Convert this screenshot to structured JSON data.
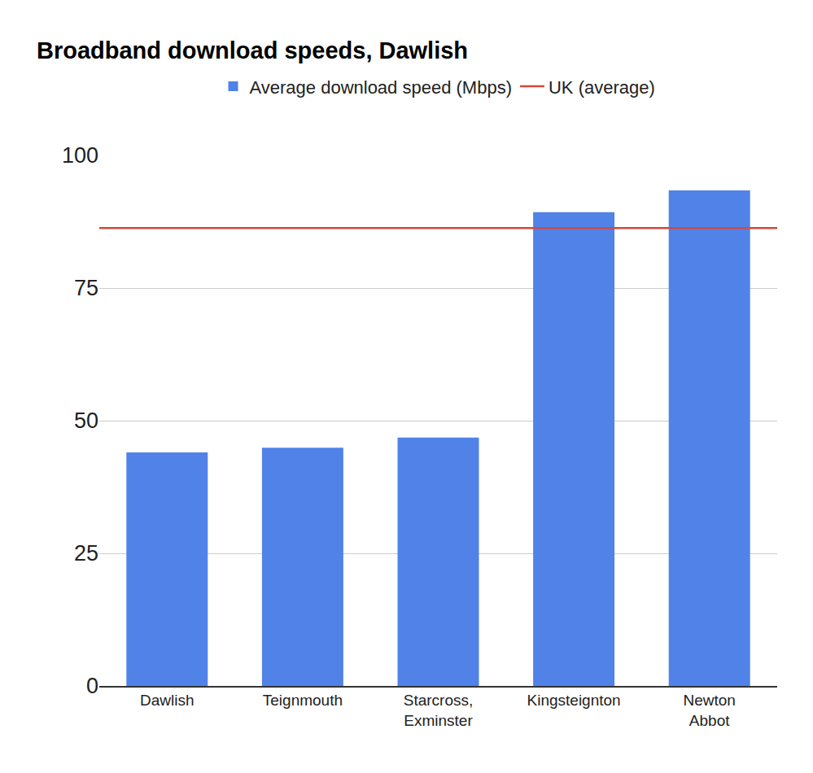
{
  "chart_data": {
    "type": "bar",
    "title": "Broadband download speeds, Dawlish",
    "categories": [
      "Dawlish",
      "Teignmouth",
      "Starcross, Exminster",
      "Kingsteignton",
      "Newton Abbot"
    ],
    "series": [
      {
        "name": "Average download speed (Mbps)",
        "type": "bar",
        "color": "#5082e8",
        "values": [
          44.0,
          44.9,
          46.8,
          89.3,
          93.4
        ]
      },
      {
        "name": "UK (average)",
        "type": "line",
        "color": "#d9463b",
        "values": [
          86.3,
          86.3,
          86.3,
          86.3,
          86.3
        ]
      }
    ],
    "ylim": [
      0,
      100
    ],
    "yticks": [
      0,
      25,
      50,
      75,
      100
    ],
    "grid": true,
    "legend": "top"
  }
}
